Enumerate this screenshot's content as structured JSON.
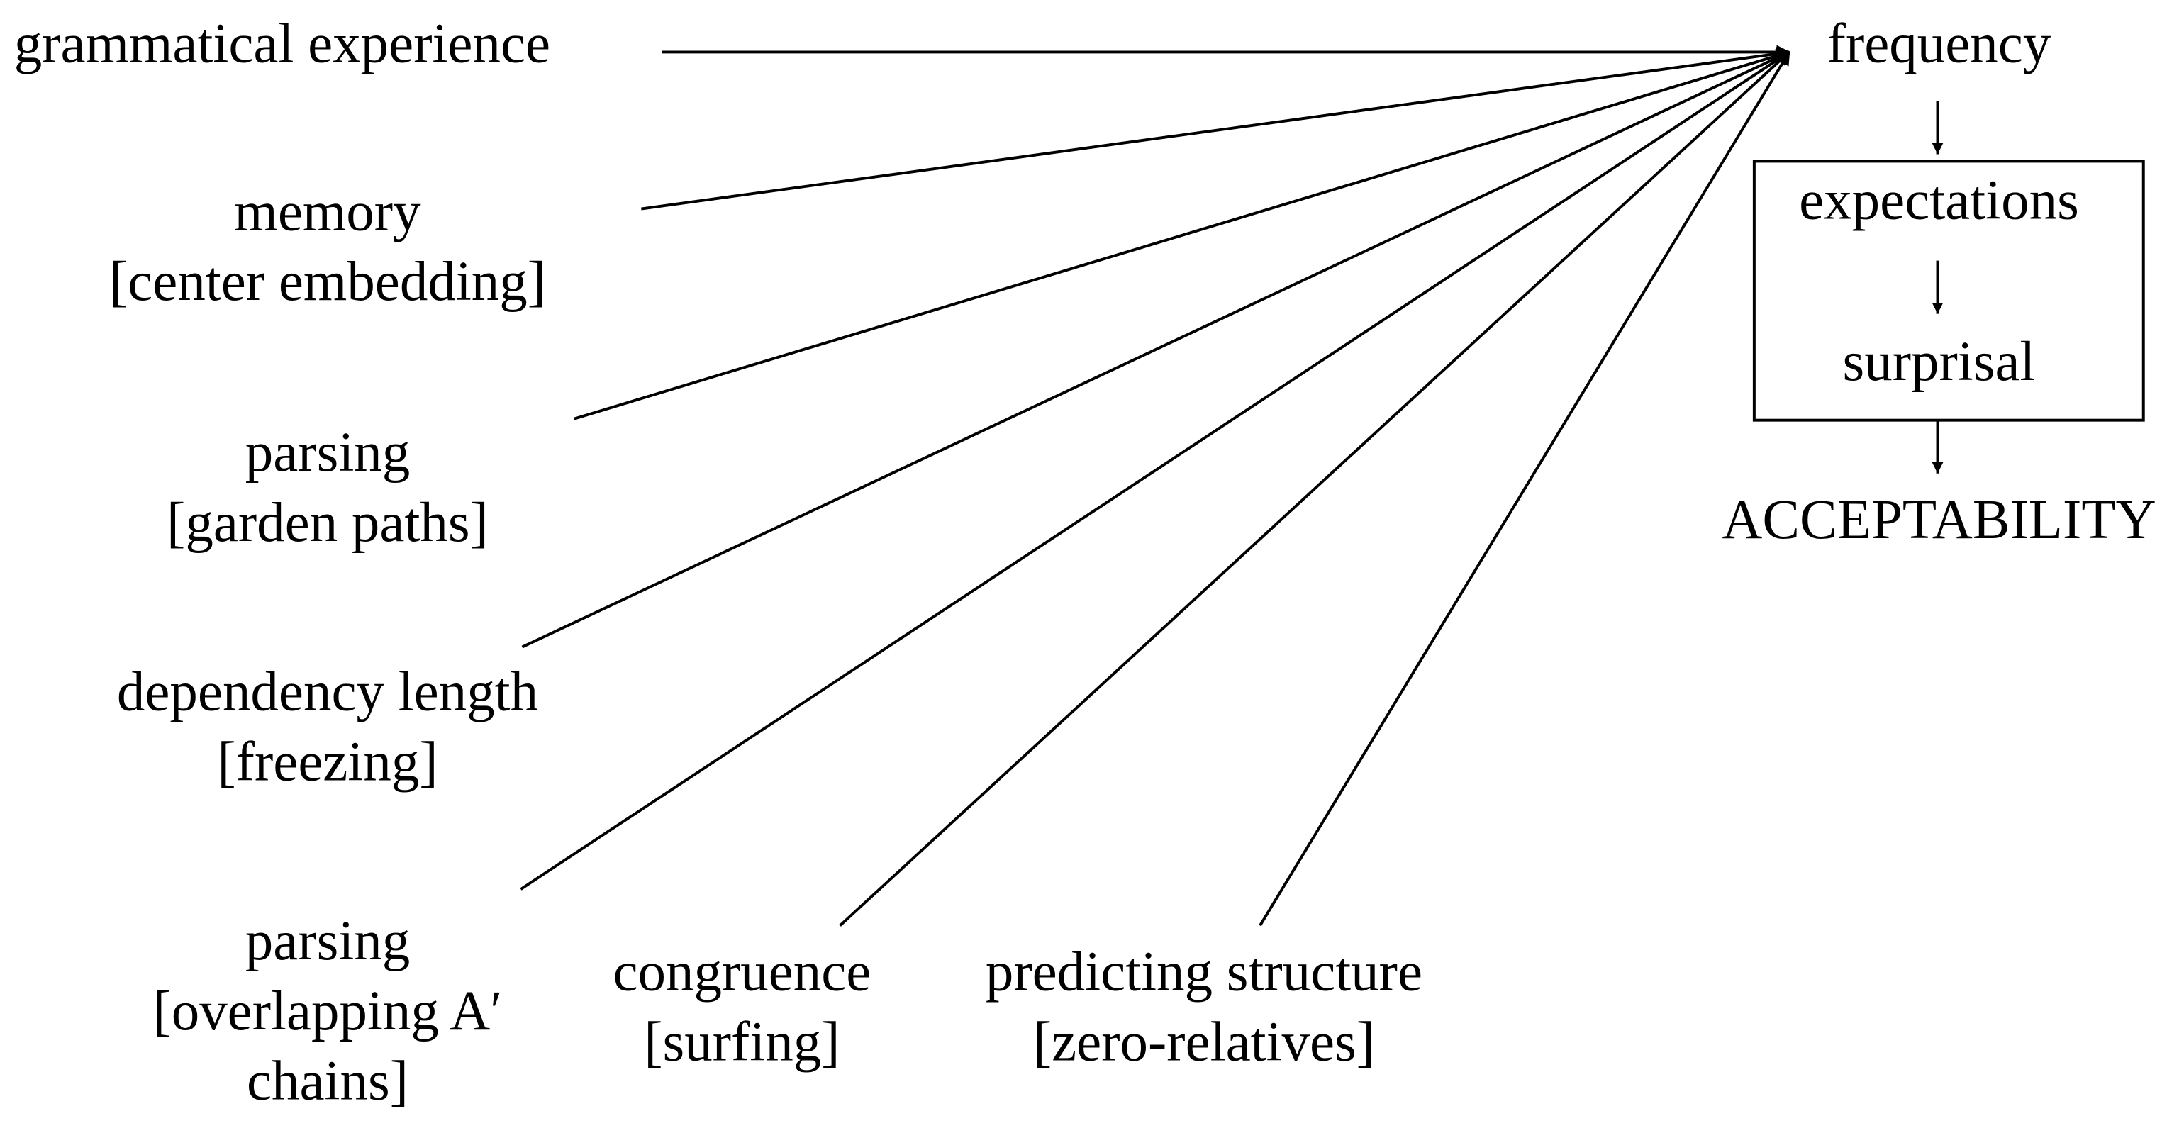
{
  "sources": [
    {
      "lines": [
        "grammatical experience"
      ]
    },
    {
      "lines": [
        "memory",
        "[center embedding]"
      ]
    },
    {
      "lines": [
        "parsing",
        "[garden paths]"
      ]
    },
    {
      "lines": [
        "dependency length",
        "[freezing]"
      ]
    },
    {
      "lines": [
        "parsing",
        "[overlapping A′",
        "chains]"
      ]
    },
    {
      "lines": [
        "congruence",
        "[surfing]"
      ]
    },
    {
      "lines": [
        "predicting structure",
        "[zero-relatives]"
      ]
    }
  ],
  "pipeline": [
    "frequency",
    "expectations",
    "surprisal",
    "ACCEPTABILITY"
  ]
}
